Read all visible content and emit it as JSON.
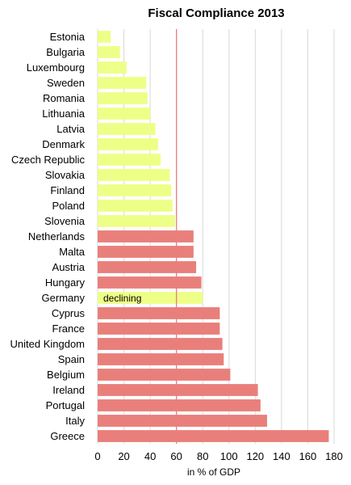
{
  "chart_data": {
    "type": "bar",
    "orientation": "horizontal",
    "title": "Fiscal Compliance 2013",
    "xlabel": "in % of GDP",
    "ylabel": "",
    "xlim": [
      0,
      180
    ],
    "xticks": [
      0,
      20,
      40,
      60,
      80,
      100,
      120,
      140,
      160,
      180
    ],
    "xtick_labels": [
      "0",
      "20",
      "40",
      "60",
      "80",
      "100",
      "120",
      "140",
      "160",
      "180"
    ],
    "reference_line": 60,
    "grid": "vertical",
    "categories": [
      "Estonia",
      "Bulgaria",
      "Luxembourg",
      "Sweden",
      "Romania",
      "Lithuania",
      "Latvia",
      "Denmark",
      "Czech Republic",
      "Slovakia",
      "Finland",
      "Poland",
      "Slovenia",
      "Netherlands",
      "Malta",
      "Austria",
      "Hungary",
      "Germany",
      "Cyprus",
      "France",
      "United Kingdom",
      "Spain",
      "Belgium",
      "Ireland",
      "Portugal",
      "Italy",
      "Greece"
    ],
    "values": [
      10,
      17,
      22,
      37,
      38,
      40,
      44,
      46,
      48,
      55,
      56,
      57,
      59,
      73,
      73,
      75,
      79,
      80,
      93,
      93,
      95,
      96,
      101,
      122,
      124,
      129,
      176
    ],
    "status": [
      "compliant",
      "compliant",
      "compliant",
      "compliant",
      "compliant",
      "compliant",
      "compliant",
      "compliant",
      "compliant",
      "compliant",
      "compliant",
      "compliant",
      "compliant",
      "noncompliant",
      "noncompliant",
      "noncompliant",
      "noncompliant",
      "compliant",
      "noncompliant",
      "noncompliant",
      "noncompliant",
      "noncompliant",
      "noncompliant",
      "noncompliant",
      "noncompliant",
      "noncompliant",
      "noncompliant"
    ],
    "colors": {
      "compliant": "#eeff88",
      "noncompliant": "#e97f7b",
      "reference_line": "#e97f7b",
      "grid": "#d9d9d9"
    },
    "annotations": [
      {
        "category": "Germany",
        "text": "declining"
      }
    ]
  }
}
